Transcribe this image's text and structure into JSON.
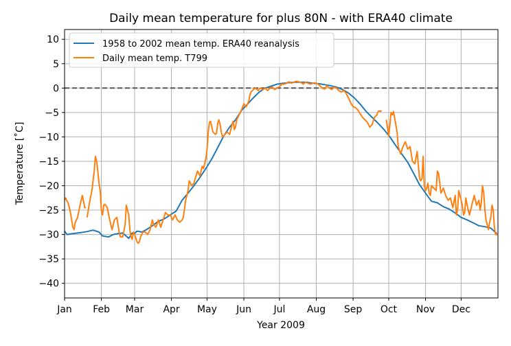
{
  "chart_data": {
    "type": "line",
    "title": "Daily mean temperature for plus 80N - with ERA40 climate",
    "xlabel": "Year 2009",
    "ylabel": "Temperature [˚C]",
    "xlim": [
      1,
      366
    ],
    "ylim": [
      -43,
      12
    ],
    "y_ticks": [
      10,
      5,
      0,
      -5,
      -10,
      -15,
      -20,
      -25,
      -30,
      -35,
      -40
    ],
    "x_ticks": [
      {
        "day": 1,
        "label": "Jan"
      },
      {
        "day": 32,
        "label": "Feb"
      },
      {
        "day": 60,
        "label": "Mar"
      },
      {
        "day": 91,
        "label": "Apr"
      },
      {
        "day": 121,
        "label": "May"
      },
      {
        "day": 152,
        "label": "Jun"
      },
      {
        "day": 182,
        "label": "Jul"
      },
      {
        "day": 213,
        "label": "Aug"
      },
      {
        "day": 244,
        "label": "Sep"
      },
      {
        "day": 274,
        "label": "Oct"
      },
      {
        "day": 305,
        "label": "Nov"
      },
      {
        "day": 335,
        "label": "Dec"
      }
    ],
    "grid": true,
    "legend_position": "top-left",
    "reference_line": {
      "y": 0,
      "style": "dashed",
      "color": "#555555"
    },
    "series": [
      {
        "name": "1958 to 2002 mean temp. ERA40 reanalysis",
        "color": "#1f77b4",
        "x": [
          1,
          3,
          8,
          15,
          20,
          25,
          30,
          33,
          38,
          42,
          46,
          50,
          55,
          58,
          60,
          62,
          66,
          70,
          75,
          80,
          85,
          90,
          95,
          100,
          105,
          110,
          115,
          120,
          125,
          130,
          135,
          140,
          145,
          150,
          155,
          160,
          165,
          170,
          175,
          180,
          185,
          190,
          195,
          200,
          205,
          210,
          215,
          220,
          225,
          230,
          235,
          240,
          245,
          250,
          255,
          260,
          265,
          270,
          275,
          280,
          285,
          290,
          295,
          300,
          305,
          310,
          315,
          320,
          325,
          330,
          335,
          340,
          345,
          350,
          355,
          360,
          365
        ],
        "y": [
          -29.3,
          -30.0,
          -29.8,
          -29.6,
          -29.4,
          -29.1,
          -29.5,
          -30.3,
          -30.5,
          -30.0,
          -29.8,
          -29.7,
          -30.8,
          -29.7,
          -29.8,
          -29.3,
          -29.5,
          -29.0,
          -28.2,
          -27.3,
          -26.8,
          -26.0,
          -25.2,
          -23.0,
          -21.5,
          -20.0,
          -18.3,
          -16.5,
          -14.5,
          -12.2,
          -9.8,
          -8.0,
          -6.5,
          -4.6,
          -3.3,
          -2.0,
          -0.8,
          0.0,
          0.4,
          0.8,
          1.0,
          1.1,
          1.2,
          1.2,
          1.2,
          1.0,
          0.9,
          0.7,
          0.5,
          0.2,
          -0.3,
          -1.0,
          -2.0,
          -3.3,
          -4.8,
          -6.0,
          -7.2,
          -8.5,
          -10.0,
          -11.8,
          -13.5,
          -15.2,
          -17.5,
          -19.8,
          -21.5,
          -23.2,
          -23.5,
          -24.3,
          -24.8,
          -25.6,
          -26.5,
          -27.0,
          -27.6,
          -28.2,
          -28.4,
          -28.7,
          -29.8
        ]
      },
      {
        "name": "Daily mean temp. T799",
        "color": "#ff7f0e",
        "segments": [
          {
            "x": [
              1,
              2,
              3,
              4,
              6,
              8,
              9,
              10,
              12,
              14,
              16,
              18,
              19
            ],
            "y": [
              -23.0,
              -22.5,
              -23.2,
              -23.5,
              -25.5,
              -28.5,
              -29.0,
              -27.5,
              -26.5,
              -24.0,
              -22.0,
              -24.5,
              -24.5
            ]
          },
          {
            "x": [
              20,
              22,
              24,
              26,
              27,
              28,
              29,
              30,
              31,
              32,
              33,
              34,
              35,
              37,
              39,
              41,
              43,
              45,
              46,
              47,
              48,
              50,
              52,
              53,
              55,
              56,
              57,
              58,
              59,
              60,
              62,
              63,
              64,
              65,
              67,
              69,
              71,
              73,
              74,
              75,
              76,
              78,
              80,
              82,
              84,
              86,
              88,
              90,
              92,
              94,
              96,
              98,
              100,
              101,
              103,
              105,
              106,
              108,
              110,
              111,
              113,
              115,
              116,
              117,
              118,
              119,
              120,
              121,
              122,
              123,
              124,
              125,
              126,
              128,
              129,
              130,
              131,
              132,
              133,
              134,
              136,
              138,
              140,
              142,
              143,
              144,
              145,
              146,
              148,
              150,
              152,
              154,
              156,
              157,
              158,
              160,
              162,
              164,
              166,
              168,
              170,
              172,
              174,
              176,
              178,
              180,
              182,
              184,
              186,
              188,
              190,
              192,
              194,
              196,
              198,
              200,
              202,
              204,
              206,
              208,
              210,
              212,
              214,
              216,
              218,
              220,
              222,
              224,
              226,
              228,
              230,
              232,
              234,
              236,
              238,
              240,
              242,
              244,
              246,
              248,
              250,
              252,
              254,
              256,
              258,
              260,
              262,
              264,
              265,
              266,
              267,
              268
            ],
            "y": [
              -26.5,
              -23.5,
              -21.0,
              -17.0,
              -14.0,
              -15.0,
              -17.0,
              -19.5,
              -21.0,
              -25.0,
              -26.0,
              -24.0,
              -23.8,
              -24.5,
              -27.0,
              -29.0,
              -27.0,
              -26.5,
              -28.0,
              -29.5,
              -30.5,
              -30.5,
              -28.0,
              -24.0,
              -26.0,
              -29.0,
              -30.5,
              -31.0,
              -29.5,
              -30.0,
              -31.5,
              -31.8,
              -31.5,
              -30.5,
              -29.5,
              -29.5,
              -30.0,
              -29.0,
              -28.0,
              -27.0,
              -28.0,
              -28.5,
              -27.0,
              -28.5,
              -27.0,
              -25.5,
              -26.0,
              -26.0,
              -27.0,
              -26.0,
              -27.0,
              -27.5,
              -27.0,
              -26.5,
              -23.0,
              -21.0,
              -19.0,
              -20.0,
              -19.5,
              -18.5,
              -17.0,
              -18.0,
              -17.0,
              -16.0,
              -16.5,
              -15.5,
              -14.5,
              -12.5,
              -9.0,
              -7.0,
              -6.8,
              -8.0,
              -9.0,
              -9.5,
              -9.2,
              -7.2,
              -6.5,
              -7.5,
              -9.0,
              -10.0,
              -9.5,
              -9.0,
              -9.5,
              -7.5,
              -6.8,
              -8.5,
              -8.0,
              -6.5,
              -5.5,
              -4.5,
              -3.2,
              -3.8,
              -2.8,
              -1.5,
              -0.8,
              -0.3,
              0.0,
              -0.5,
              0.0,
              -0.3,
              0.0,
              -0.5,
              0.0,
              0.2,
              -0.3,
              0.0,
              0.3,
              0.8,
              0.8,
              1.0,
              1.3,
              1.0,
              1.2,
              1.4,
              1.3,
              1.2,
              0.8,
              1.2,
              1.0,
              0.8,
              1.0,
              1.1,
              0.9,
              0.5,
              0.0,
              -0.2,
              0.5,
              0.0,
              -0.3,
              0.2,
              0.0,
              -0.5,
              -0.8,
              -0.5,
              -1.0,
              -2.0,
              -3.0,
              -3.8,
              -4.0,
              -4.5,
              -5.3,
              -6.0,
              -6.5,
              -7.0,
              -8.0,
              -7.5,
              -6.0,
              -5.5,
              -4.8,
              -4.7,
              -4.8,
              -4.6
            ]
          },
          {
            "x": [
              272,
              274,
              275,
              276,
              277,
              278,
              280,
              281,
              282,
              284,
              286,
              288,
              290,
              292,
              294,
              296,
              298,
              299,
              300,
              301,
              302,
              303,
              304,
              305,
              306,
              307,
              308,
              309,
              310,
              312,
              314,
              315,
              316,
              318,
              320,
              322,
              324,
              326,
              328,
              330,
              331,
              332,
              333,
              334,
              336,
              337,
              338,
              339,
              340,
              342,
              344,
              346,
              348,
              350,
              351,
              352,
              353,
              354,
              355,
              356,
              357,
              358,
              359,
              360,
              361,
              362,
              363,
              364,
              365,
              366
            ],
            "y": [
              -6.5,
              -9.8,
              -7.5,
              -5.0,
              -5.5,
              -4.8,
              -7.5,
              -9.0,
              -12.0,
              -13.5,
              -12.0,
              -11.0,
              -12.5,
              -12.0,
              -15.0,
              -15.5,
              -13.0,
              -16.0,
              -18.5,
              -19.0,
              -18.5,
              -14.0,
              -20.0,
              -21.0,
              -20.5,
              -19.5,
              -21.5,
              -22.0,
              -20.0,
              -20.5,
              -21.0,
              -17.0,
              -17.5,
              -21.5,
              -20.5,
              -22.0,
              -23.0,
              -22.5,
              -24.5,
              -22.0,
              -26.0,
              -25.0,
              -21.0,
              -22.0,
              -24.0,
              -26.0,
              -25.5,
              -22.5,
              -24.0,
              -26.0,
              -24.0,
              -22.0,
              -24.0,
              -23.0,
              -25.0,
              -23.5,
              -20.0,
              -21.5,
              -25.0,
              -27.0,
              -28.0,
              -29.0,
              -27.5,
              -26.5,
              -24.0,
              -25.0,
              -28.5,
              -30.0,
              -30.0,
              -30.0
            ]
          }
        ]
      }
    ]
  }
}
